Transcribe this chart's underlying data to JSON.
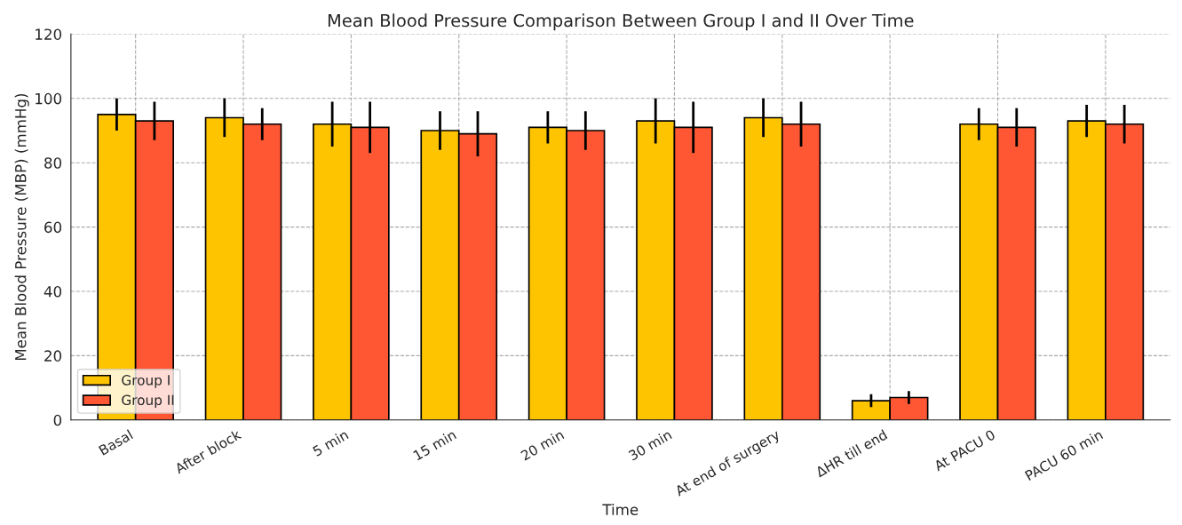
{
  "chart_data": {
    "type": "bar",
    "title": "Mean Blood Pressure Comparison Between Group I and II Over Time",
    "xlabel": "Time",
    "ylabel": "Mean Blood Pressure (MBP) (mmHg)",
    "categories": [
      "Basal",
      "After block",
      "5 min",
      "15 min",
      "20 min",
      "30 min",
      "At end of surgery",
      "ΔHR till end",
      "At PACU 0",
      "PACU 60 min"
    ],
    "series": [
      {
        "name": "Group I",
        "color": "#ffc400",
        "values": [
          95,
          94,
          92,
          90,
          91,
          93,
          94,
          6,
          92,
          93
        ],
        "errors": [
          5,
          6,
          7,
          6,
          5,
          7,
          6,
          2,
          5,
          5
        ]
      },
      {
        "name": "Group II",
        "color": "#ff5733",
        "values": [
          93,
          92,
          91,
          89,
          90,
          91,
          92,
          7,
          91,
          92
        ],
        "errors": [
          6,
          5,
          8,
          7,
          6,
          8,
          7,
          2,
          6,
          6
        ]
      }
    ],
    "ylim": [
      0,
      120
    ],
    "yticks": [
      0,
      20,
      40,
      60,
      80,
      100,
      120
    ],
    "grid": true,
    "legend": "bottom left"
  }
}
